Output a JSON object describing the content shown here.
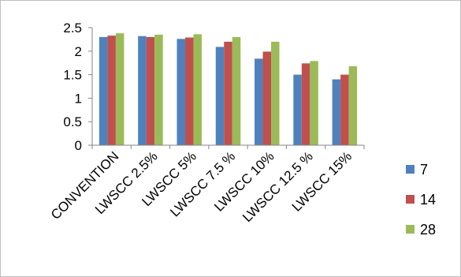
{
  "chart_data": {
    "type": "bar",
    "title": "",
    "xlabel": "",
    "ylabel": "",
    "ylim": [
      0,
      2.5
    ],
    "yticks": [
      "0",
      "0.5",
      "1",
      "1.5",
      "2",
      "2.5"
    ],
    "grid": false,
    "legend_position": "right",
    "categories": [
      "CONVENTION",
      "LWSCC 2.5%",
      "LWSCC 5%",
      "LWSCC 7.5 %",
      "LWSCC 10%",
      "LWSCC 12.5 %",
      "LWSCC 15%"
    ],
    "series": [
      {
        "name": "7",
        "color": "#4f81bd",
        "values": [
          2.3,
          2.32,
          2.26,
          2.09,
          1.84,
          1.5,
          1.4
        ]
      },
      {
        "name": "14",
        "color": "#c0504d",
        "values": [
          2.33,
          2.3,
          2.29,
          2.2,
          1.99,
          1.74,
          1.5
        ]
      },
      {
        "name": "28",
        "color": "#9bbb59",
        "values": [
          2.38,
          2.35,
          2.36,
          2.3,
          2.2,
          1.79,
          1.68
        ]
      }
    ]
  }
}
